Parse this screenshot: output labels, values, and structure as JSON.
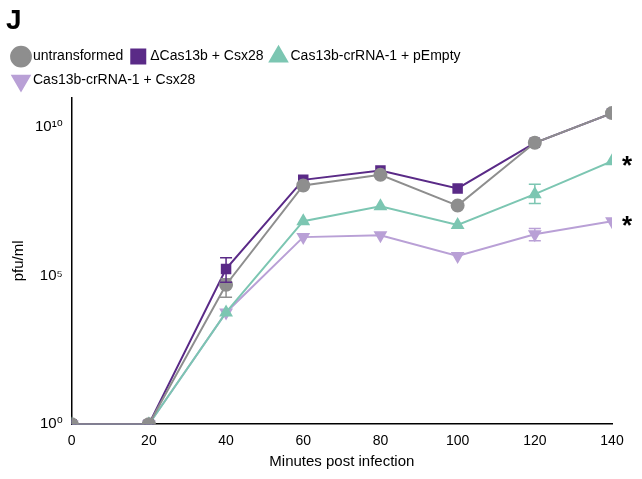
{
  "chart_data": {
    "type": "line",
    "title": "J",
    "x_label": "Minutes post infection",
    "y_label": "pfu/ml",
    "log": "y",
    "grid": false,
    "legend": "top-left",
    "xlim": [
      0,
      140
    ],
    "xticks": [
      0,
      20,
      40,
      60,
      80,
      100,
      120,
      140
    ],
    "ylim": [
      1,
      100000000000
    ],
    "yticks": [
      {
        "value": 1,
        "label": "10⁰"
      },
      {
        "value": 100000,
        "label": "10⁵"
      },
      {
        "value": 10000000000,
        "label": "10¹⁰"
      }
    ],
    "x": [
      0,
      20,
      40,
      60,
      80,
      100,
      120,
      140
    ],
    "series": [
      {
        "name": "untransformed",
        "color": "#8e8e8e",
        "marker": "circle",
        "values": [
          1,
          1,
          50000,
          110000000,
          250000000,
          23000000,
          3000000000,
          30000000000
        ],
        "error_bars": [
          null,
          null,
          [
            19000,
            79000
          ],
          null,
          null,
          null,
          null,
          null
        ]
      },
      {
        "name": "ΔCas13b + Csx28",
        "color": "#5a2a87",
        "marker": "square",
        "values": [
          1,
          1,
          170000,
          170000000,
          350000000,
          87000000,
          3000000000,
          30000000000
        ],
        "error_bars": [
          null,
          null,
          [
            60000,
            400000
          ],
          null,
          null,
          null,
          null,
          null
        ]
      },
      {
        "name": "Cas13b-crRNA-1 + pEmpty",
        "color": "#7cc6b2",
        "marker": "triangle",
        "values": [
          1,
          1,
          5800,
          6900000,
          22000000,
          5100000,
          56000000,
          720000000
        ],
        "error_bars": [
          null,
          null,
          null,
          null,
          null,
          null,
          [
            27000000,
            120000000
          ],
          null
        ]
      },
      {
        "name": "Cas13b-crRNA-1 + Csx28",
        "color": "#b9a0d6",
        "marker": "triangle_down",
        "values": [
          1,
          1,
          5800,
          2000000,
          2300000,
          460000,
          2500000,
          6900000
        ],
        "error_bars": [
          null,
          null,
          null,
          null,
          null,
          null,
          [
            1500000,
            3900000
          ],
          null
        ]
      }
    ],
    "annotations": [
      {
        "text": "*",
        "x": 140,
        "y": 720000000
      },
      {
        "text": "*",
        "x": 140,
        "y": 6900000
      }
    ]
  }
}
